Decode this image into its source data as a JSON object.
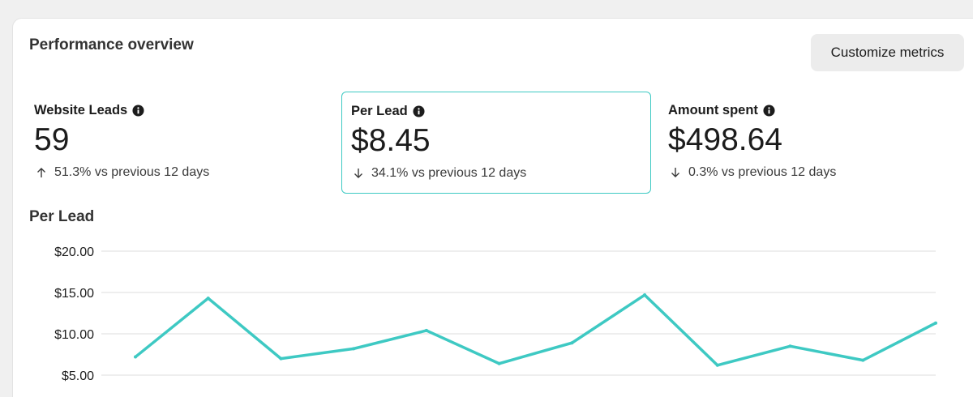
{
  "panel": {
    "title": "Performance overview",
    "customize_label": "Customize metrics"
  },
  "metrics": [
    {
      "label": "Website Leads",
      "value": "59",
      "change": "51.3% vs previous 12 days",
      "direction": "up",
      "info_icon": "info-icon",
      "selected": false
    },
    {
      "label": "Per Lead",
      "value": "$8.45",
      "change": "34.1% vs previous 12 days",
      "direction": "down",
      "info_icon": "info-icon",
      "selected": true
    },
    {
      "label": "Amount spent",
      "value": "$498.64",
      "change": "0.3% vs previous 12 days",
      "direction": "down",
      "info_icon": "info-icon",
      "selected": false
    }
  ],
  "chart_data": {
    "type": "line",
    "title": "Per Lead",
    "y_tick_labels": [
      "$20.00",
      "$15.00",
      "$10.00",
      "$5.00"
    ],
    "y_ticks": [
      20,
      15,
      10,
      5
    ],
    "series": [
      {
        "color": "#3ec9c3",
        "values": [
          7.2,
          14.3,
          7.0,
          8.2,
          10.4,
          6.4,
          8.9,
          14.7,
          6.2,
          8.5,
          6.8,
          11.3
        ]
      }
    ],
    "ylim": [
      5,
      20
    ],
    "grid": true,
    "accent_color": "#3dc9c3"
  }
}
